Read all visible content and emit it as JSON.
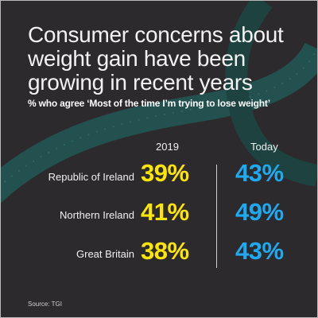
{
  "title_lines": [
    "Consumer concerns about",
    "weight gain have been",
    "growing in recent years"
  ],
  "subtitle": "% who agree ‘Most of the time I’m trying to lose weight’",
  "source": "Source: TGI",
  "colors": {
    "background": "#2d2a2e",
    "year_2019": "#ffe600",
    "today": "#1eaaf1",
    "text": "#f2f2f2",
    "tape": "#1f5f5a"
  },
  "chart_data": {
    "type": "table",
    "columns": [
      "2019",
      "Today"
    ],
    "unit": "%",
    "rows": [
      {
        "label": "Republic of Ireland",
        "values": [
          39,
          43
        ],
        "display": [
          "39%",
          "43%"
        ]
      },
      {
        "label": "Northern Ireland",
        "values": [
          41,
          49
        ],
        "display": [
          "41%",
          "49%"
        ]
      },
      {
        "label": "Great Britain",
        "values": [
          38,
          43
        ],
        "display": [
          "38%",
          "43%"
        ]
      }
    ]
  }
}
